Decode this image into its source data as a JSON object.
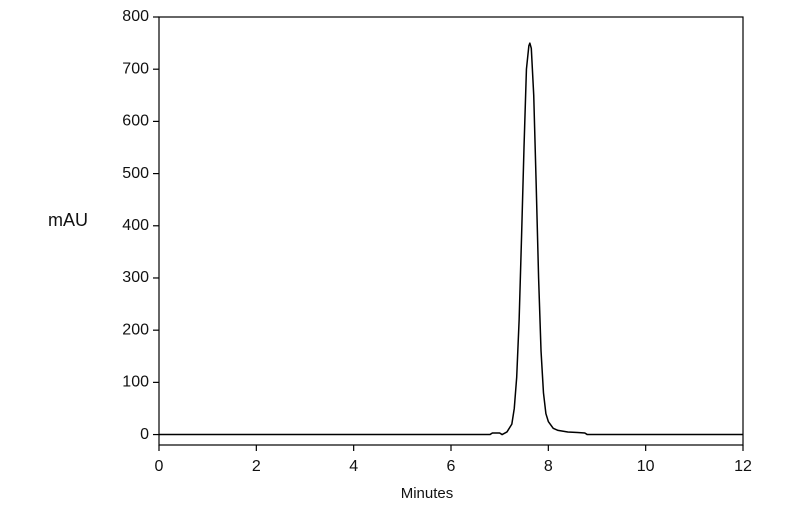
{
  "chart_data": {
    "type": "line",
    "x_label": "Minutes",
    "y_label": "mAU",
    "x": [
      0,
      6.8,
      6.85,
      7.0,
      7.05,
      7.15,
      7.25,
      7.3,
      7.35,
      7.4,
      7.45,
      7.5,
      7.55,
      7.6,
      7.62,
      7.65,
      7.7,
      7.75,
      7.8,
      7.85,
      7.9,
      7.95,
      8.0,
      8.1,
      8.2,
      8.4,
      8.6,
      8.75,
      8.8,
      12
    ],
    "series": [
      {
        "color": "#000000",
        "values": [
          0,
          0,
          3,
          3,
          0,
          5,
          20,
          50,
          110,
          220,
          380,
          550,
          700,
          745,
          750,
          740,
          650,
          480,
          300,
          160,
          80,
          40,
          25,
          12,
          8,
          5,
          4,
          3,
          0,
          0
        ]
      }
    ],
    "xlim": [
      0,
      12
    ],
    "xticks": [
      0,
      2,
      4,
      6,
      8,
      10,
      12
    ],
    "ylim": [
      -20,
      800
    ],
    "yticks": [
      0,
      100,
      200,
      300,
      400,
      500,
      600,
      700,
      800
    ],
    "grid": false
  }
}
